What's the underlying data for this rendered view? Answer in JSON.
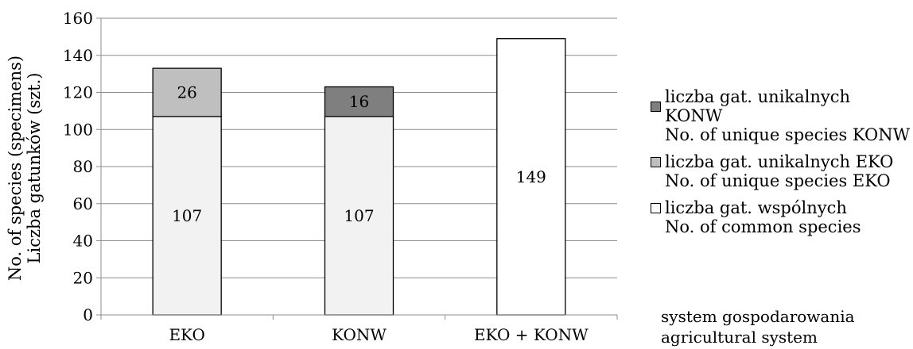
{
  "chart_data": {
    "type": "bar",
    "stacked": true,
    "categories": [
      "EKO",
      "KONW",
      "EKO + KONW"
    ],
    "series": [
      {
        "name": "liczba gat. wspólnych / No. of common species",
        "values": [
          107,
          107,
          149
        ],
        "color": "#f2f2f2",
        "color_last": "#ffffff"
      },
      {
        "name": "liczba gat. unikalnych EKO / No. of unique species EKO",
        "values": [
          26,
          0,
          0
        ],
        "color": "#bfbfbf"
      },
      {
        "name": "liczba gat. unikalnych KONW / No. of unique species KONW",
        "values": [
          0,
          16,
          0
        ],
        "color": "#7f7f7f"
      }
    ],
    "data_labels": [
      {
        "category": "EKO",
        "series": 0,
        "text": "107"
      },
      {
        "category": "EKO",
        "series": 1,
        "text": "26"
      },
      {
        "category": "KONW",
        "series": 0,
        "text": "107"
      },
      {
        "category": "KONW",
        "series": 2,
        "text": "16"
      },
      {
        "category": "EKO + KONW",
        "series": 0,
        "text": "149"
      }
    ],
    "ylabel_line1": "No. of species (specimens)",
    "ylabel_line2": "Liczba gatunków (szt.)",
    "ylim": [
      0,
      160
    ],
    "yticks": [
      0,
      20,
      40,
      60,
      80,
      100,
      120,
      140,
      160
    ],
    "grid": true,
    "legend_placement": "right"
  },
  "legend": [
    {
      "line1": "liczba gat. unikalnych KONW",
      "line2": "No. of unique species KONW",
      "color": "#7f7f7f"
    },
    {
      "line1": "liczba gat. unikalnych EKO",
      "line2": "No. of unique species EKO",
      "color": "#bfbfbf"
    },
    {
      "line1": "liczba gat. wspólnych",
      "line2": "No. of common species",
      "color": "#ffffff"
    }
  ],
  "xcaption": {
    "line1": "system gospodarowania",
    "line2": "agricultural system"
  }
}
